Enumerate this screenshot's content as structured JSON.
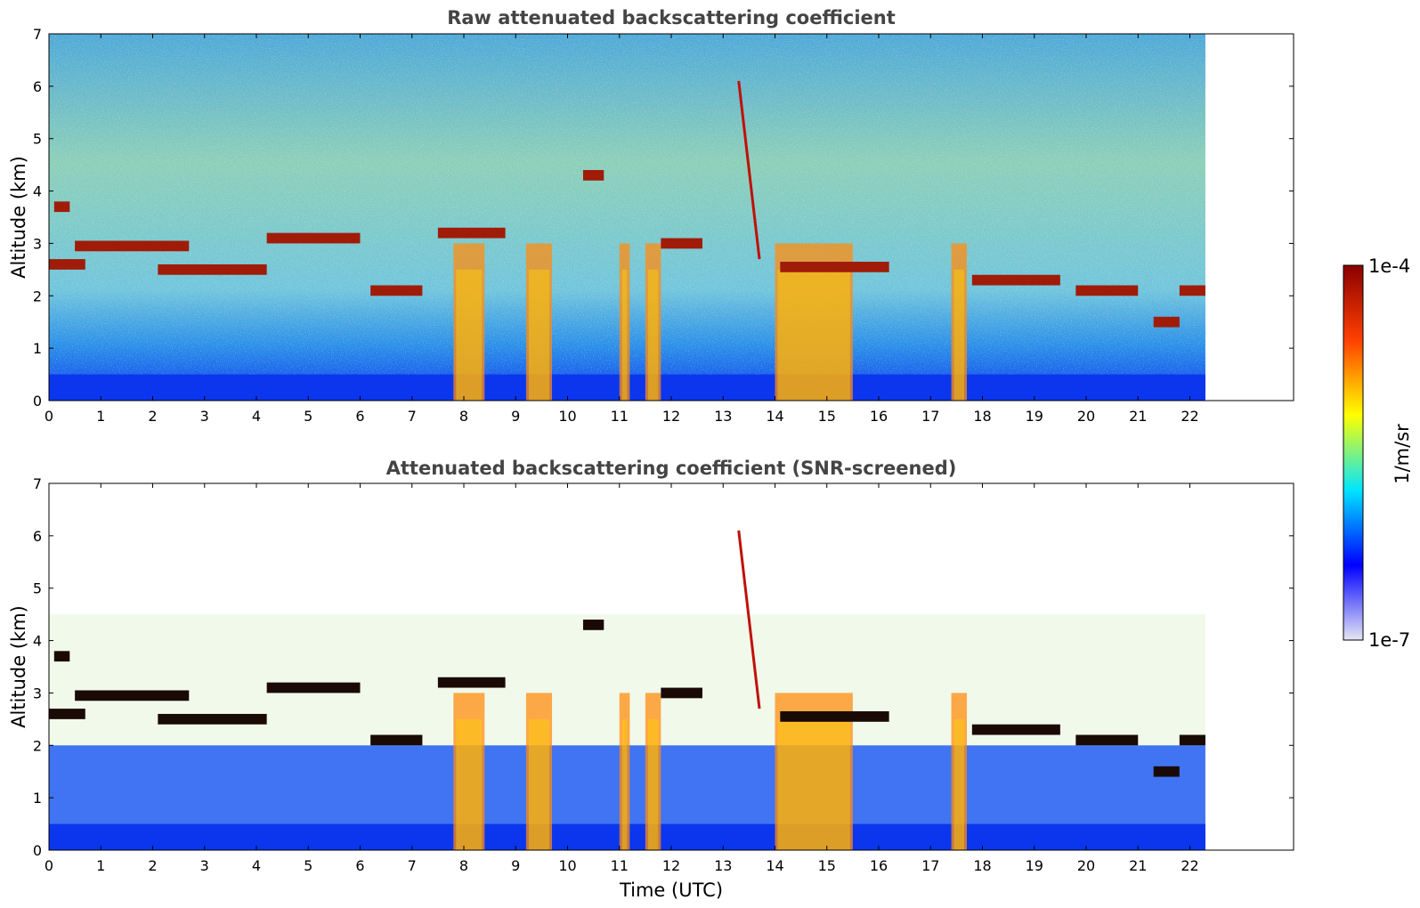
{
  "chart_data": [
    {
      "type": "heatmap",
      "title": "Raw attenuated backscattering coefficient",
      "xlabel": "",
      "ylabel": "Altitude (km)",
      "xlim": [
        0,
        24
      ],
      "ylim": [
        0,
        7
      ],
      "x_ticks": [
        "0",
        "1",
        "2",
        "3",
        "4",
        "5",
        "6",
        "7",
        "8",
        "9",
        "10",
        "11",
        "12",
        "13",
        "14",
        "15",
        "16",
        "17",
        "18",
        "19",
        "20",
        "21",
        "22"
      ],
      "y_ticks": [
        "0",
        "1",
        "2",
        "3",
        "4",
        "5",
        "6",
        "7"
      ],
      "data_end_time": 22.3,
      "grid": false,
      "cloud_layers": [
        {
          "t0": 0.0,
          "t1": 0.7,
          "alt": 2.6
        },
        {
          "t0": 0.1,
          "t1": 0.4,
          "alt": 3.7
        },
        {
          "t0": 0.5,
          "t1": 2.7,
          "alt": 2.95
        },
        {
          "t0": 2.1,
          "t1": 4.2,
          "alt": 2.5
        },
        {
          "t0": 4.2,
          "t1": 6.0,
          "alt": 3.1
        },
        {
          "t0": 6.2,
          "t1": 7.2,
          "alt": 2.1
        },
        {
          "t0": 7.5,
          "t1": 8.8,
          "alt": 3.2
        },
        {
          "t0": 10.3,
          "t1": 10.7,
          "alt": 4.3
        },
        {
          "t0": 11.8,
          "t1": 12.6,
          "alt": 3.0
        },
        {
          "t0": 14.1,
          "t1": 16.2,
          "alt": 2.55
        },
        {
          "t0": 17.8,
          "t1": 19.5,
          "alt": 2.3
        },
        {
          "t0": 19.8,
          "t1": 21.0,
          "alt": 2.1
        },
        {
          "t0": 21.3,
          "t1": 21.8,
          "alt": 1.5
        },
        {
          "t0": 21.8,
          "t1": 22.3,
          "alt": 2.1
        }
      ],
      "precipitation_shafts": [
        {
          "t0": 7.8,
          "t1": 8.4
        },
        {
          "t0": 9.2,
          "t1": 9.7
        },
        {
          "t0": 11.0,
          "t1": 11.2
        },
        {
          "t0": 11.5,
          "t1": 11.8
        },
        {
          "t0": 14.0,
          "t1": 15.5
        },
        {
          "t0": 17.4,
          "t1": 17.7
        }
      ]
    },
    {
      "type": "heatmap",
      "title": "Attenuated backscattering coefficient (SNR-screened)",
      "xlabel": "Time (UTC)",
      "ylabel": "Altitude (km)",
      "xlim": [
        0,
        24
      ],
      "ylim": [
        0,
        7
      ],
      "x_ticks": [
        "0",
        "1",
        "2",
        "3",
        "4",
        "5",
        "6",
        "7",
        "8",
        "9",
        "10",
        "11",
        "12",
        "13",
        "14",
        "15",
        "16",
        "17",
        "18",
        "19",
        "20",
        "21",
        "22"
      ],
      "y_ticks": [
        "0",
        "1",
        "2",
        "3",
        "4",
        "5",
        "6",
        "7"
      ],
      "data_end_time": 22.3,
      "grid": false
    }
  ],
  "colorbar": {
    "max_label": "1e-4",
    "min_label": "1e-7",
    "unit_label": "1/m/sr",
    "scale": "log",
    "colormap": "jet",
    "colors": [
      "#e6e6f5",
      "#0000ff",
      "#00e5ff",
      "#ffff00",
      "#ff4000",
      "#8b0000"
    ]
  }
}
